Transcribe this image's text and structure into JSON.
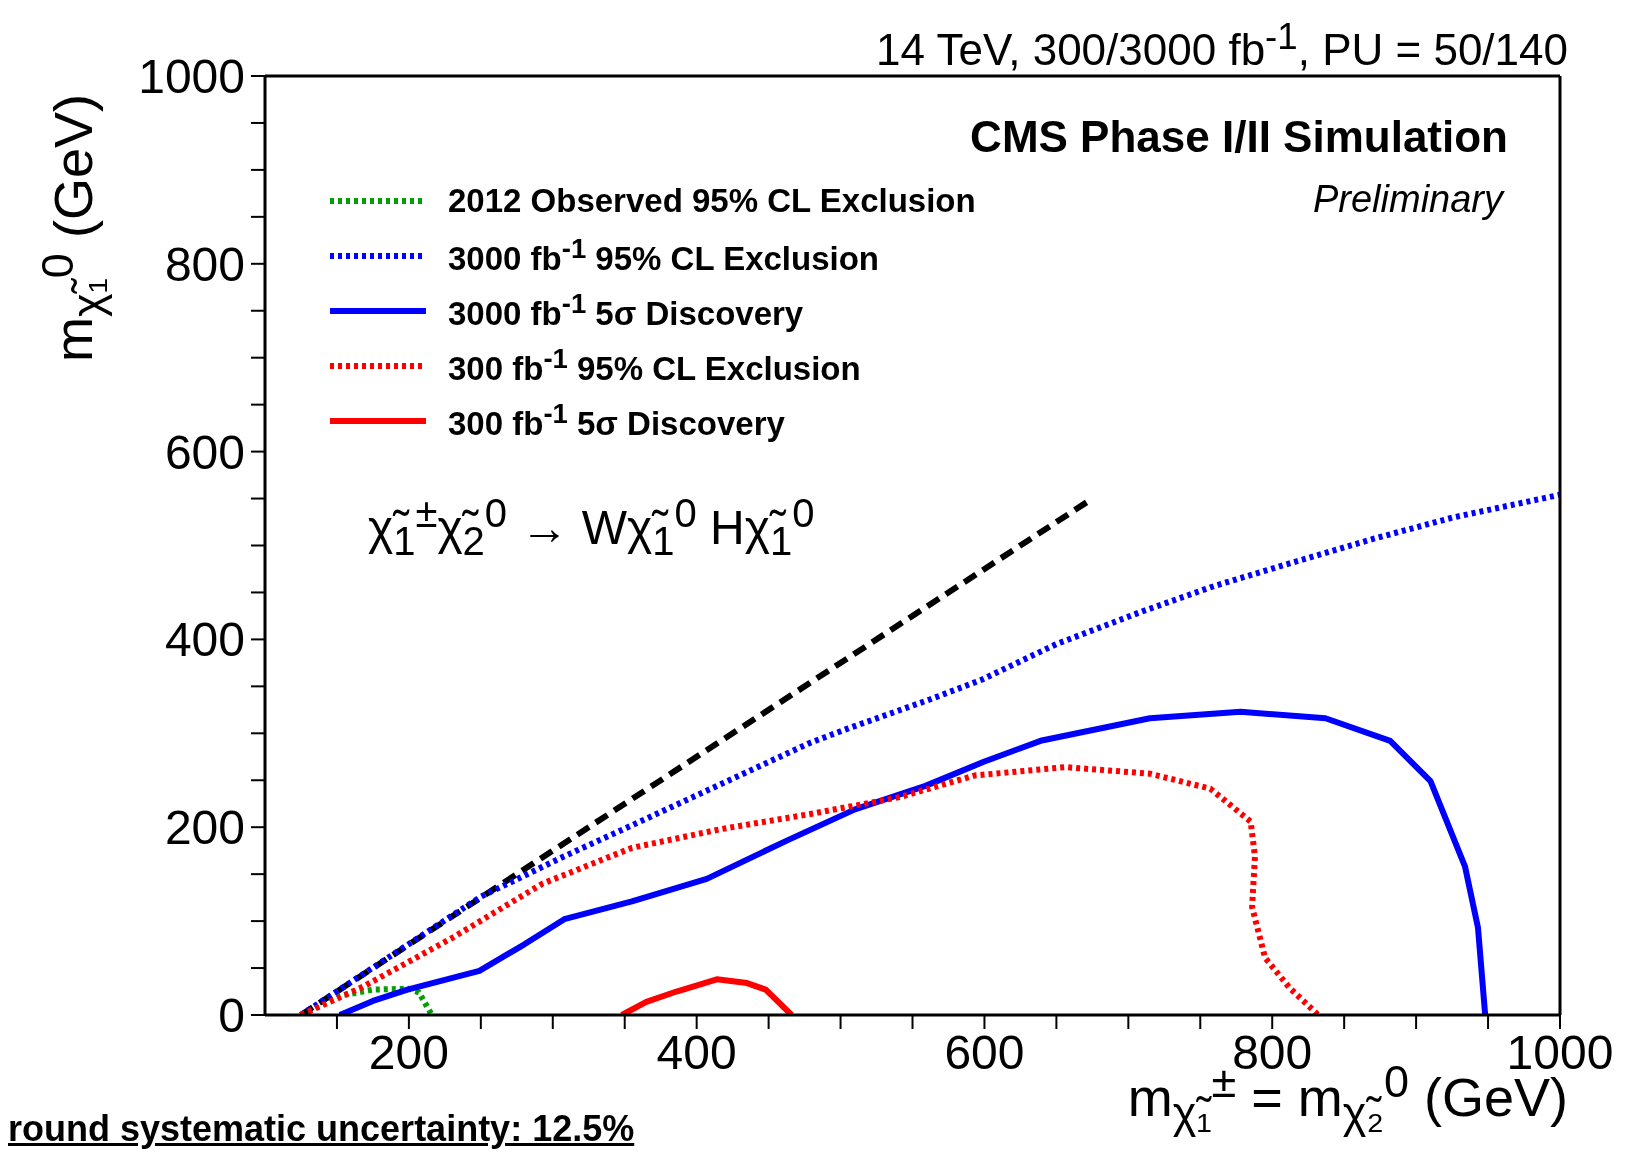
{
  "chart_data": {
    "type": "line",
    "title": "14 TeV, 300/3000 fb$^{-1}$, PU = 50/140",
    "xlabel": "m$_{χ̃₁}$$^{±}$ = m$_{χ̃₂}$$^{0}$ (GeV)",
    "ylabel": "m$_{χ̃₁}$$^{0}$ (GeV)",
    "annotations": [
      "CMS Phase I/II Simulation",
      "Preliminary",
      "χ̃$_{1}$$^{±}$χ̃$_{2}$$^{0}$ → Wχ̃$_{1}$$^{0}$ Hχ̃$_{1}$$^{0}$",
      "round systematic uncertainty: 12.5%"
    ],
    "xlim": [
      100,
      1000
    ],
    "ylim": [
      0,
      1000
    ],
    "xticks": [
      {
        "value": 150,
        "label": null
      },
      200,
      {
        "value": 250,
        "label": null
      },
      {
        "value": 300,
        "label": null
      },
      {
        "value": 350,
        "label": null
      },
      400,
      {
        "value": 450,
        "label": null
      },
      {
        "value": 500,
        "label": null
      },
      {
        "value": 550,
        "label": null
      },
      600,
      {
        "value": 650,
        "label": null
      },
      {
        "value": 700,
        "label": null
      },
      {
        "value": 750,
        "label": null
      },
      800,
      {
        "value": 850,
        "label": null
      },
      {
        "value": 900,
        "label": null
      },
      {
        "value": 950,
        "label": null
      },
      1000
    ],
    "yticks": [
      0,
      {
        "value": 50,
        "label": null
      },
      {
        "value": 100,
        "label": null
      },
      {
        "value": 150,
        "label": null
      },
      200,
      {
        "value": 250,
        "label": null
      },
      {
        "value": 300,
        "label": null
      },
      {
        "value": 350,
        "label": null
      },
      400,
      {
        "value": 450,
        "label": null
      },
      {
        "value": 500,
        "label": null
      },
      {
        "value": 550,
        "label": null
      },
      600,
      {
        "value": 650,
        "label": null
      },
      {
        "value": 700,
        "label": null
      },
      {
        "value": 750,
        "label": null
      },
      800,
      {
        "value": 850,
        "label": null
      },
      {
        "value": 900,
        "label": null
      },
      {
        "value": 950,
        "label": null
      },
      1000
    ],
    "legend": "top left",
    "series": [
      {
        "type": "line",
        "color": "#000000",
        "line_style": "dashed",
        "x": [
          125,
          675
        ],
        "values": [
          0,
          550
        ]
      },
      {
        "name": "2012 Observed 95% CL Exclusion",
        "color": "#00a000",
        "line_style": "dotted",
        "x": [
          125,
          150,
          175,
          200,
          207,
          216
        ],
        "values": [
          0,
          20,
          27,
          28,
          24,
          0
        ]
      },
      {
        "name": "3000 fb$^{-1}$ 95% CL Exclusion",
        "color": "#0000ff",
        "line_style": "dotted",
        "x": [
          125,
          250,
          308,
          355,
          417,
          479,
          505,
          562,
          598,
          650,
          710,
          760,
          810,
          870,
          926,
          1000
        ],
        "values": [
          0,
          126,
          169,
          202,
          246,
          290,
          305,
          336,
          357,
          395,
          430,
          457,
          480,
          507,
          530,
          554
        ]
      },
      {
        "name": "3000 fb$^{-1}$ 5σ Discovery",
        "color": "#0000ff",
        "line_style": "solid",
        "x": [
          152,
          175,
          199,
          249,
          280,
          308,
          355,
          407,
          463,
          510,
          559,
          600,
          639,
          715,
          778,
          837,
          882,
          910,
          934,
          943,
          948
        ],
        "values": [
          0,
          15,
          27,
          47,
          75,
          102,
          121,
          145,
          186,
          219,
          244,
          270,
          292,
          316,
          323,
          316,
          292,
          249,
          158,
          93,
          0
        ]
      },
      {
        "name": "300 fb$^{-1}$ 95% CL Exclusion",
        "color": "#ff0000",
        "line_style": "dotted",
        "x": [
          125,
          168,
          230,
          293,
          355,
          417,
          479,
          541,
          593,
          656,
          715,
          757,
          785,
          788,
          786,
          795,
          812,
          832
        ],
        "values": [
          0,
          30,
          82,
          140,
          178,
          198,
          214,
          232,
          255,
          264,
          257,
          241,
          206,
          169,
          115,
          61,
          29,
          0
        ]
      },
      {
        "name": "300 fb$^{-1}$ 5σ Discovery",
        "color": "#ff0000",
        "line_style": "solid",
        "x": [
          348,
          365,
          386,
          414,
          435,
          448,
          466
        ],
        "values": [
          0,
          14,
          25,
          38,
          34,
          27,
          0
        ]
      }
    ]
  }
}
